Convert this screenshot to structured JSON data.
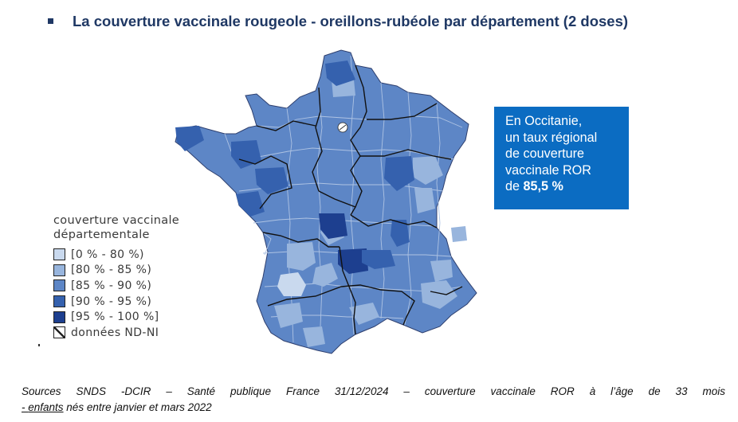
{
  "title": "La couverture vaccinale rougeole - oreillons-rubéole par département (2 doses)",
  "callout": {
    "line1": "En Occitanie,",
    "line2": "un taux régional",
    "line3": "de couverture",
    "line4": "vaccinale ROR",
    "line5_prefix": "de ",
    "line5_value": "85,5 %"
  },
  "legend": {
    "title_line1": "couverture vaccinale",
    "title_line2": "départementale",
    "items": [
      {
        "label": "[0 % - 80 %)",
        "color": "#c9d9ee"
      },
      {
        "label": "[80 % - 85 %)",
        "color": "#98b5dd"
      },
      {
        "label": "[85 % - 90 %)",
        "color": "#5d86c6"
      },
      {
        "label": "[90 % - 95 %)",
        "color": "#3561ae"
      },
      {
        "label": "[95 % - 100 %]",
        "color": "#1d3f8f"
      },
      {
        "label": "données ND-NI",
        "color": "hatched"
      }
    ]
  },
  "colors": {
    "title": "#1f3864",
    "callout_bg": "#0b6cc2",
    "map_base": "#5d86c6",
    "region_border": "#111111"
  },
  "sources": {
    "line1": "Sources SNDS -DCIR – Santé publique France 31/12/2024 – couverture vaccinale ROR à l’âge de 33 mois",
    "line2_prefix": "- ",
    "line2_underlined": "enfants",
    "line2_suffix": " nés entre janvier et mars 2022"
  }
}
